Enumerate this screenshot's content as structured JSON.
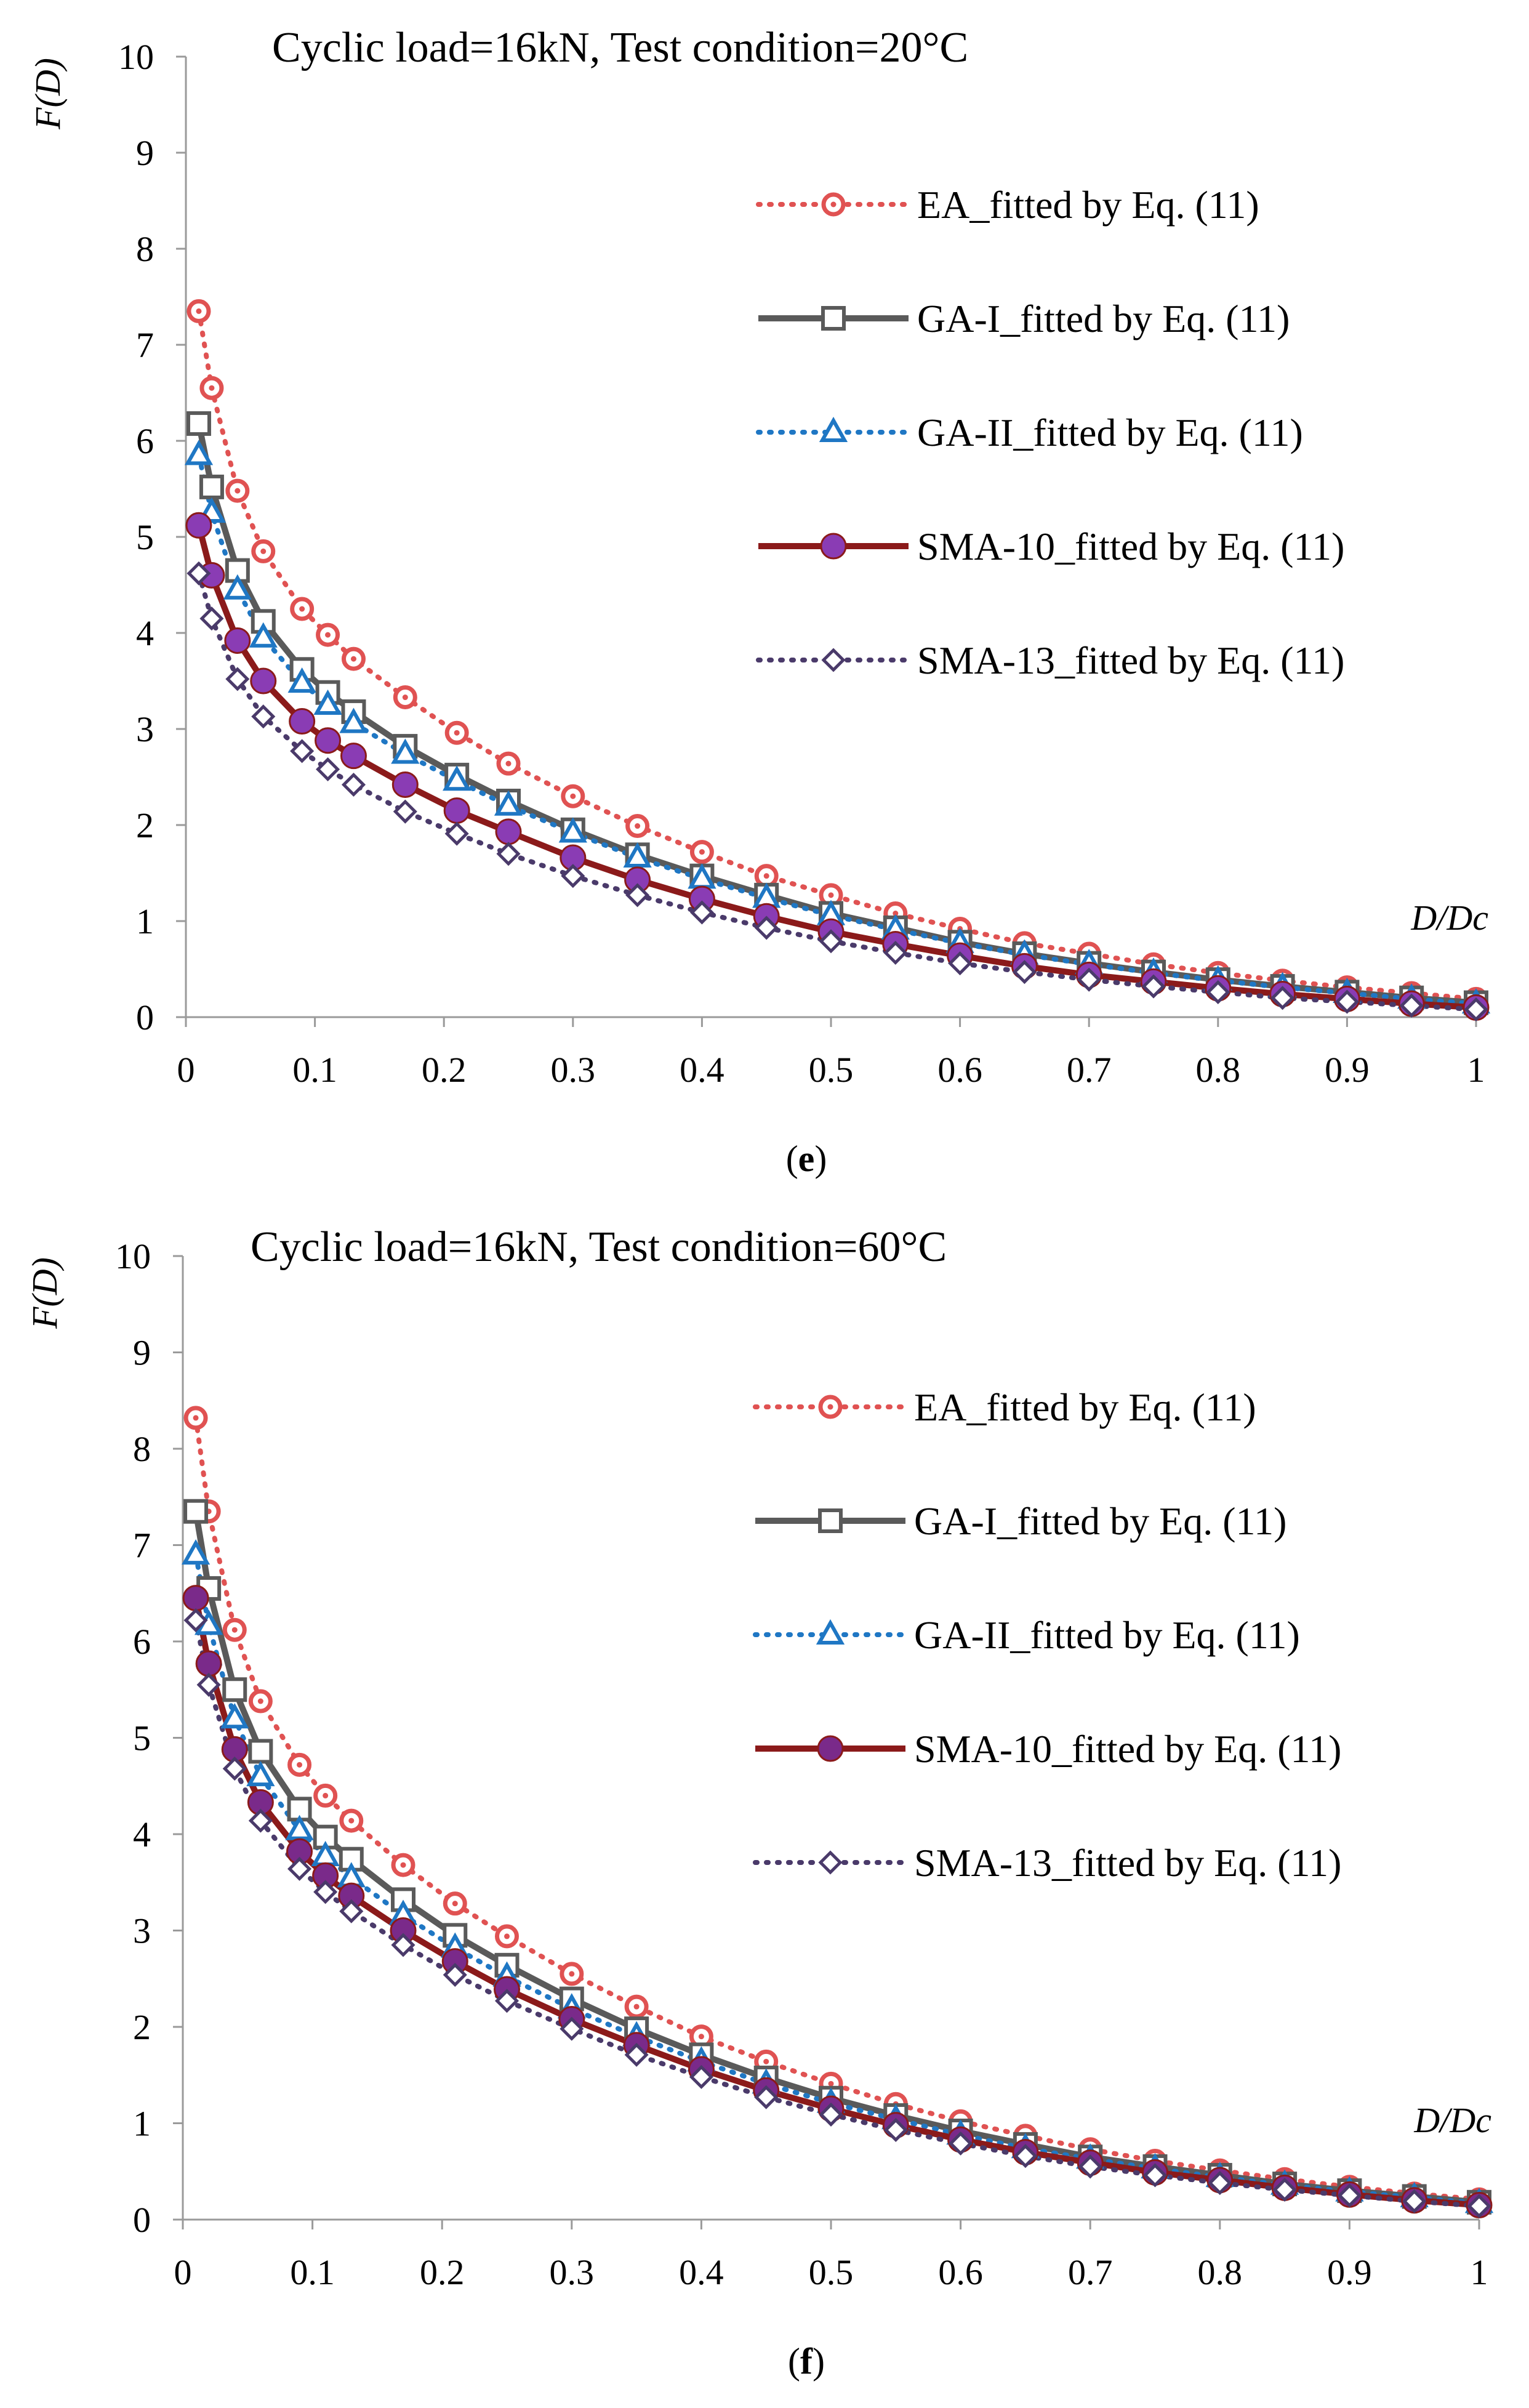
{
  "chart_data": [
    {
      "type": "line",
      "panel_label": "e",
      "title": "Cyclic load=16kN, Test condition=20°C",
      "xlabel": "D/Dc",
      "ylabel": "F(D)",
      "xlim": [
        0,
        1
      ],
      "ylim": [
        0,
        10
      ],
      "xticks": [
        "0",
        "0.1",
        "0.2",
        "0.3",
        "0.4",
        "0.5",
        "0.6",
        "0.7",
        "0.8",
        "0.9",
        "1"
      ],
      "yticks": [
        "0",
        "1",
        "2",
        "3",
        "4",
        "5",
        "6",
        "7",
        "8",
        "9",
        "10"
      ],
      "legend_position": "right",
      "x": [
        0.01,
        0.02,
        0.04,
        0.06,
        0.09,
        0.11,
        0.13,
        0.17,
        0.21,
        0.25,
        0.3,
        0.35,
        0.4,
        0.45,
        0.5,
        0.55,
        0.6,
        0.65,
        0.7,
        0.75,
        0.8,
        0.85,
        0.9,
        0.95,
        1.0
      ],
      "series": [
        {
          "name": "EA_fitted by Eq. (11)",
          "color": "#e05252",
          "marker": "circle-dot",
          "line": "dotted",
          "values": [
            7.35,
            6.55,
            5.48,
            4.85,
            4.25,
            3.98,
            3.73,
            3.33,
            2.96,
            2.64,
            2.3,
            1.99,
            1.72,
            1.47,
            1.27,
            1.08,
            0.92,
            0.77,
            0.66,
            0.55,
            0.46,
            0.38,
            0.31,
            0.25,
            0.19
          ]
        },
        {
          "name": "GA-I_fitted by Eq. (11)",
          "color": "#5a5a5a",
          "marker": "square",
          "line": "solid",
          "values": [
            6.18,
            5.52,
            4.65,
            4.12,
            3.62,
            3.38,
            3.18,
            2.82,
            2.52,
            2.25,
            1.95,
            1.69,
            1.47,
            1.27,
            1.08,
            0.93,
            0.78,
            0.66,
            0.56,
            0.47,
            0.39,
            0.32,
            0.26,
            0.2,
            0.15
          ]
        },
        {
          "name": "GA-II_fitted by Eq. (11)",
          "color": "#1f77c4",
          "marker": "triangle",
          "line": "dotted",
          "values": [
            5.85,
            5.25,
            4.45,
            3.95,
            3.48,
            3.25,
            3.06,
            2.74,
            2.46,
            2.2,
            1.92,
            1.66,
            1.44,
            1.24,
            1.06,
            0.91,
            0.77,
            0.65,
            0.55,
            0.46,
            0.38,
            0.31,
            0.25,
            0.19,
            0.14
          ]
        },
        {
          "name": "SMA-10_fitted by Eq. (11)",
          "color": "#8b1a1a",
          "marker": "filled-circle",
          "marker_color": "#8a3cb4",
          "line": "solid",
          "values": [
            5.12,
            4.6,
            3.92,
            3.5,
            3.08,
            2.88,
            2.72,
            2.42,
            2.15,
            1.93,
            1.66,
            1.43,
            1.23,
            1.05,
            0.89,
            0.76,
            0.64,
            0.53,
            0.44,
            0.37,
            0.3,
            0.24,
            0.19,
            0.14,
            0.1
          ]
        },
        {
          "name": "SMA-13_fitted by Eq. (11)",
          "color": "#4a3a6a",
          "marker": "diamond",
          "line": "dotted",
          "values": [
            4.62,
            4.15,
            3.52,
            3.13,
            2.77,
            2.58,
            2.42,
            2.14,
            1.91,
            1.7,
            1.47,
            1.27,
            1.09,
            0.93,
            0.79,
            0.67,
            0.56,
            0.47,
            0.39,
            0.32,
            0.26,
            0.2,
            0.16,
            0.12,
            0.08
          ]
        }
      ]
    },
    {
      "type": "line",
      "panel_label": "f",
      "title": "Cyclic load=16kN, Test condition=60°C",
      "xlabel": "D/Dc",
      "ylabel": "F(D)",
      "xlim": [
        0,
        1
      ],
      "ylim": [
        0,
        10
      ],
      "xticks": [
        "0",
        "0.1",
        "0.2",
        "0.3",
        "0.4",
        "0.5",
        "0.6",
        "0.7",
        "0.8",
        "0.9",
        "1"
      ],
      "yticks": [
        "0",
        "1",
        "2",
        "3",
        "4",
        "5",
        "6",
        "7",
        "8",
        "9",
        "10"
      ],
      "legend_position": "right",
      "x": [
        0.01,
        0.02,
        0.04,
        0.06,
        0.09,
        0.11,
        0.13,
        0.17,
        0.21,
        0.25,
        0.3,
        0.35,
        0.4,
        0.45,
        0.5,
        0.55,
        0.6,
        0.65,
        0.7,
        0.75,
        0.8,
        0.85,
        0.9,
        0.95,
        1.0
      ],
      "series": [
        {
          "name": "EA_fitted by Eq. (11)",
          "color": "#e05252",
          "marker": "circle-dot",
          "line": "dotted",
          "values": [
            8.32,
            7.35,
            6.12,
            5.38,
            4.72,
            4.4,
            4.14,
            3.68,
            3.28,
            2.94,
            2.55,
            2.21,
            1.9,
            1.64,
            1.41,
            1.2,
            1.02,
            0.87,
            0.73,
            0.61,
            0.51,
            0.42,
            0.34,
            0.27,
            0.21
          ]
        },
        {
          "name": "GA-I_fitted by Eq. (11)",
          "color": "#5a5a5a",
          "marker": "square",
          "line": "solid",
          "values": [
            7.35,
            6.55,
            5.5,
            4.86,
            4.26,
            3.97,
            3.74,
            3.32,
            2.95,
            2.64,
            2.29,
            1.98,
            1.71,
            1.47,
            1.26,
            1.08,
            0.92,
            0.78,
            0.65,
            0.55,
            0.46,
            0.37,
            0.3,
            0.24,
            0.18
          ]
        },
        {
          "name": "GA-II_fitted by Eq. (11)",
          "color": "#1f77c4",
          "marker": "triangle",
          "line": "dotted",
          "values": [
            6.9,
            6.17,
            5.2,
            4.6,
            4.04,
            3.77,
            3.55,
            3.16,
            2.82,
            2.52,
            2.19,
            1.9,
            1.64,
            1.41,
            1.21,
            1.04,
            0.88,
            0.74,
            0.63,
            0.53,
            0.44,
            0.36,
            0.29,
            0.23,
            0.17
          ]
        },
        {
          "name": "SMA-10_fitted by Eq. (11)",
          "color": "#8b1a1a",
          "marker": "filled-circle",
          "marker_color": "#7a2a8a",
          "line": "solid",
          "values": [
            6.45,
            5.77,
            4.88,
            4.33,
            3.82,
            3.57,
            3.36,
            3.0,
            2.68,
            2.39,
            2.08,
            1.81,
            1.56,
            1.34,
            1.15,
            0.98,
            0.83,
            0.7,
            0.59,
            0.49,
            0.41,
            0.33,
            0.26,
            0.2,
            0.15
          ]
        },
        {
          "name": "SMA-13_fitted by Eq. (11)",
          "color": "#4a3a6a",
          "marker": "diamond",
          "line": "dotted",
          "values": [
            6.22,
            5.55,
            4.68,
            4.14,
            3.64,
            3.4,
            3.2,
            2.85,
            2.54,
            2.27,
            1.98,
            1.71,
            1.48,
            1.27,
            1.09,
            0.93,
            0.79,
            0.66,
            0.55,
            0.46,
            0.38,
            0.31,
            0.25,
            0.19,
            0.14
          ]
        }
      ]
    }
  ]
}
